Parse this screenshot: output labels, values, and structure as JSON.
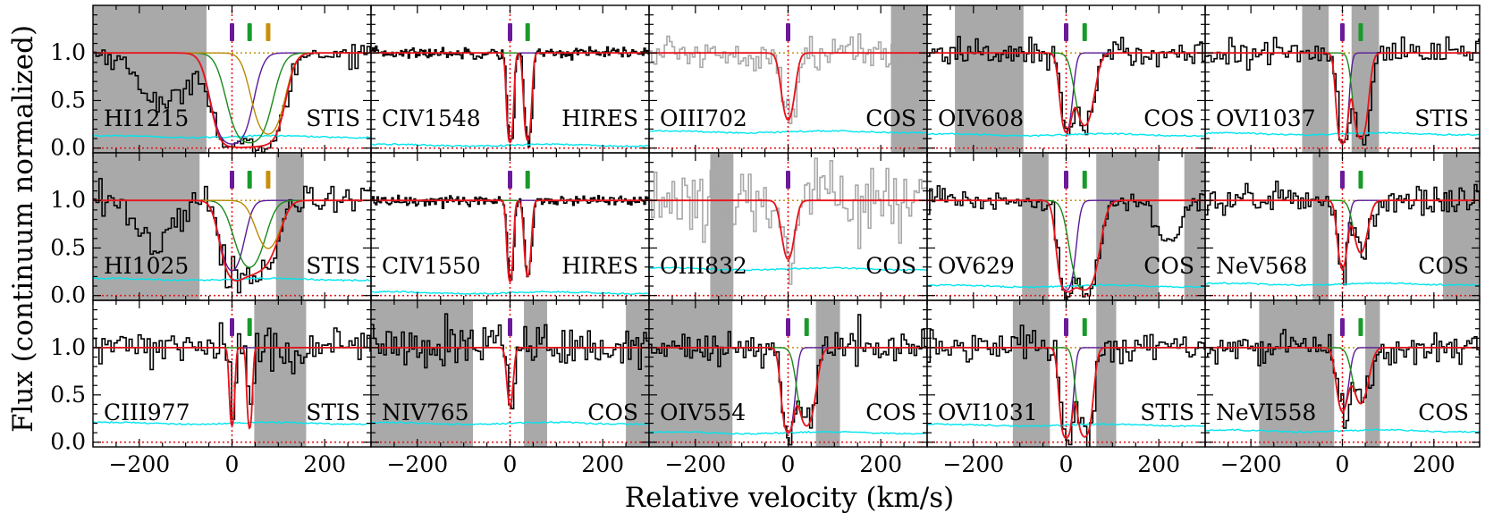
{
  "figure": {
    "ylabel": "Flux (continuum normalized)",
    "xlabel": "Relative velocity (km/s)"
  },
  "chart_data": {
    "type": "line",
    "title": "",
    "xlabel": "Relative velocity (km/s)",
    "ylabel": "Flux (continuum normalized)",
    "xlim": [
      -300,
      300
    ],
    "ylim": [
      -0.05,
      1.5
    ],
    "x_ticks": [
      -200,
      0,
      200
    ],
    "x_tick_labels": [
      "−200",
      "0",
      "200"
    ],
    "y_ticks": [
      0.0,
      0.5,
      1.0
    ],
    "y_tick_labels": [
      "0.0",
      "0.5",
      "1.0"
    ],
    "layout": "3 rows x 5 columns of panels, shared axes",
    "colors": {
      "data": "#000000",
      "data_masked": "#a8a8a8",
      "error": "#00e5ee",
      "model_total": "#e8141c",
      "component_1": "#5a1a9a",
      "component_2": "#1a8a1a",
      "component_3": "#b88a00",
      "reference_line": "#e8141c",
      "mask_region": "#a9a9a9",
      "marker_purple": "#6a1a9a",
      "marker_green": "#1a9a2a",
      "marker_gold": "#c8900a"
    },
    "panels": [
      {
        "row": 0,
        "col": 0,
        "ion": "HI1215",
        "instrument": "STIS",
        "masks": [
          [
            -300,
            -55
          ]
        ],
        "comps": [
          {
            "v": 0,
            "d": 0.98,
            "b": 38,
            "c": "component_1"
          },
          {
            "v": 38,
            "d": 0.9,
            "b": 42,
            "c": "component_2"
          },
          {
            "v": 78,
            "d": 0.6,
            "b": 35,
            "c": "component_3"
          }
        ],
        "markers": [
          0,
          38,
          78
        ],
        "err": 0.12,
        "noise": 0.06,
        "style": "black",
        "feature": "lyman_alpha_left_dip"
      },
      {
        "row": 0,
        "col": 1,
        "ion": "CIV1548",
        "instrument": "HIRES",
        "masks": [],
        "comps": [
          {
            "v": 0,
            "d": 0.88,
            "b": 7,
            "c": "component_1"
          },
          {
            "v": 38,
            "d": 0.78,
            "b": 8,
            "c": "component_2"
          }
        ],
        "markers": [
          0,
          38
        ],
        "err": 0.03,
        "noise": 0.03,
        "style": "black",
        "feature": ""
      },
      {
        "row": 0,
        "col": 2,
        "ion": "OIII702",
        "instrument": "COS",
        "masks": [
          [
            222,
            300
          ]
        ],
        "comps": [
          {
            "v": 0,
            "d": 0.38,
            "b": 16,
            "c": "component_1"
          }
        ],
        "markers": [
          0
        ],
        "err": 0.17,
        "noise": 0.09,
        "style": "gray",
        "feature": ""
      },
      {
        "row": 0,
        "col": 3,
        "ion": "OIV608",
        "instrument": "COS",
        "masks": [
          [
            -240,
            -92
          ]
        ],
        "comps": [
          {
            "v": 0,
            "d": 0.55,
            "b": 14,
            "c": "component_1"
          },
          {
            "v": 40,
            "d": 0.45,
            "b": 22,
            "c": "component_2"
          }
        ],
        "markers": [
          0,
          40
        ],
        "err": 0.14,
        "noise": 0.07,
        "style": "black",
        "feature": ""
      },
      {
        "row": 0,
        "col": 4,
        "ion": "OVI1037",
        "instrument": "STIS",
        "masks": [
          [
            -88,
            -30
          ],
          [
            20,
            80
          ]
        ],
        "comps": [
          {
            "v": 0,
            "d": 0.95,
            "b": 12,
            "c": "component_1"
          },
          {
            "v": 40,
            "d": 0.72,
            "b": 16,
            "c": "component_2"
          }
        ],
        "markers": [
          0,
          40
        ],
        "err": 0.15,
        "noise": 0.08,
        "style": "black",
        "feature": ""
      },
      {
        "row": 1,
        "col": 0,
        "ion": "HI1025",
        "instrument": "STIS",
        "masks": [
          [
            -300,
            -70
          ],
          [
            95,
            155
          ]
        ],
        "comps": [
          {
            "v": 0,
            "d": 0.42,
            "b": 28,
            "c": "component_1"
          },
          {
            "v": 38,
            "d": 0.38,
            "b": 36,
            "c": "component_2"
          },
          {
            "v": 78,
            "d": 0.22,
            "b": 32,
            "c": "component_3"
          }
        ],
        "markers": [
          0,
          38,
          78
        ],
        "err": 0.17,
        "noise": 0.1,
        "style": "black",
        "feature": "left_dip_small"
      },
      {
        "row": 1,
        "col": 1,
        "ion": "CIV1550",
        "instrument": "HIRES",
        "masks": [],
        "comps": [
          {
            "v": 0,
            "d": 0.6,
            "b": 7,
            "c": "component_1"
          },
          {
            "v": 38,
            "d": 0.5,
            "b": 8,
            "c": "component_2"
          }
        ],
        "markers": [
          0,
          38
        ],
        "err": 0.03,
        "noise": 0.03,
        "style": "black",
        "feature": ""
      },
      {
        "row": 1,
        "col": 2,
        "ion": "OIII832",
        "instrument": "COS",
        "masks": [
          [
            -168,
            -118
          ]
        ],
        "comps": [
          {
            "v": 0,
            "d": 0.3,
            "b": 16,
            "c": "component_1"
          }
        ],
        "markers": [
          0
        ],
        "err": 0.28,
        "noise": 0.2,
        "style": "gray",
        "feature": ""
      },
      {
        "row": 1,
        "col": 3,
        "ion": "OV629",
        "instrument": "COS",
        "masks": [
          [
            -95,
            -38
          ],
          [
            65,
            200
          ],
          [
            255,
            300
          ]
        ],
        "comps": [
          {
            "v": 0,
            "d": 0.9,
            "b": 18,
            "c": "component_1"
          },
          {
            "v": 40,
            "d": 0.88,
            "b": 28,
            "c": "component_2"
          }
        ],
        "markers": [
          0,
          40
        ],
        "err": 0.1,
        "noise": 0.06,
        "style": "black",
        "feature": "right_bump"
      },
      {
        "row": 1,
        "col": 4,
        "ion": "NeV568",
        "instrument": "COS",
        "masks": [
          [
            -65,
            -30
          ],
          [
            220,
            300
          ]
        ],
        "comps": [
          {
            "v": 0,
            "d": 0.4,
            "b": 12,
            "c": "component_1"
          },
          {
            "v": 40,
            "d": 0.25,
            "b": 18,
            "c": "component_2"
          }
        ],
        "markers": [
          0,
          40
        ],
        "err": 0.12,
        "noise": 0.08,
        "style": "black",
        "feature": ""
      },
      {
        "row": 2,
        "col": 0,
        "ion": "CIII977",
        "instrument": "STIS",
        "masks": [
          [
            48,
            160
          ]
        ],
        "comps": [
          {
            "v": 0,
            "d": 0.55,
            "b": 6,
            "c": "component_1"
          },
          {
            "v": 38,
            "d": 0.6,
            "b": 6,
            "c": "component_2"
          }
        ],
        "markers": [
          0,
          38
        ],
        "err": 0.2,
        "noise": 0.12,
        "style": "black",
        "feature": ""
      },
      {
        "row": 2,
        "col": 1,
        "ion": "NIV765",
        "instrument": "COS",
        "masks": [
          [
            -300,
            -80
          ],
          [
            30,
            80
          ],
          [
            250,
            300
          ]
        ],
        "comps": [
          {
            "v": 0,
            "d": 0.3,
            "b": 8,
            "c": "component_1"
          }
        ],
        "markers": [
          0
        ],
        "err": 0.2,
        "noise": 0.12,
        "style": "black",
        "feature": ""
      },
      {
        "row": 2,
        "col": 2,
        "ion": "OIV554",
        "instrument": "COS",
        "masks": [
          [
            -300,
            -120
          ],
          [
            60,
            112
          ]
        ],
        "comps": [
          {
            "v": 0,
            "d": 0.72,
            "b": 14,
            "c": "component_1"
          },
          {
            "v": 40,
            "d": 0.55,
            "b": 20,
            "c": "component_2"
          }
        ],
        "markers": [
          0,
          40
        ],
        "err": 0.1,
        "noise": 0.08,
        "style": "black",
        "feature": ""
      },
      {
        "row": 2,
        "col": 3,
        "ion": "OVI1031",
        "instrument": "STIS",
        "masks": [
          [
            -115,
            -35
          ],
          [
            65,
            108
          ]
        ],
        "comps": [
          {
            "v": 0,
            "d": 0.98,
            "b": 13,
            "c": "component_1"
          },
          {
            "v": 40,
            "d": 0.9,
            "b": 16,
            "c": "component_2"
          }
        ],
        "markers": [
          0,
          40
        ],
        "err": 0.18,
        "noise": 0.1,
        "style": "black",
        "feature": ""
      },
      {
        "row": 2,
        "col": 4,
        "ion": "NeVI558",
        "instrument": "COS",
        "masks": [
          [
            -182,
            -18
          ],
          [
            50,
            82
          ]
        ],
        "comps": [
          {
            "v": 0,
            "d": 0.35,
            "b": 15,
            "c": "component_1"
          },
          {
            "v": 40,
            "d": 0.28,
            "b": 20,
            "c": "component_2"
          }
        ],
        "markers": [
          0,
          40
        ],
        "err": 0.12,
        "noise": 0.08,
        "style": "black",
        "feature": ""
      }
    ]
  }
}
